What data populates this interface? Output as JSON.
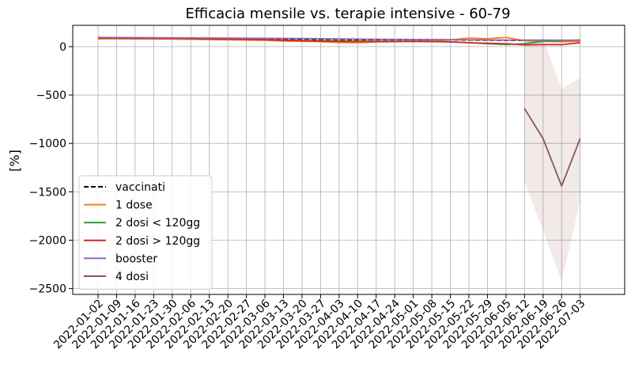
{
  "chart_data": {
    "type": "line",
    "title": "Efficacia mensile vs. terapie intensive - 60-79",
    "xlabel": "",
    "ylabel": "[%]",
    "x": [
      "2022-01-02",
      "2022-01-09",
      "2022-01-16",
      "2022-01-23",
      "2022-01-30",
      "2022-02-06",
      "2022-02-13",
      "2022-02-20",
      "2022-02-27",
      "2022-03-06",
      "2022-03-13",
      "2022-03-20",
      "2022-03-27",
      "2022-04-03",
      "2022-04-10",
      "2022-04-17",
      "2022-04-24",
      "2022-05-01",
      "2022-05-08",
      "2022-05-15",
      "2022-05-22",
      "2022-05-29",
      "2022-06-05",
      "2022-06-12",
      "2022-06-19",
      "2022-06-26",
      "2022-07-03"
    ],
    "ylim": [
      -2560,
      220
    ],
    "yticks": [
      0,
      -500,
      -1000,
      -1500,
      -2000,
      -2500
    ],
    "ytick_labels": [
      "0",
      "−500",
      "−1000",
      "−1500",
      "−2000",
      "−2500"
    ],
    "grid": true,
    "legend_position": "lower-left",
    "series": [
      {
        "name": "vaccinati",
        "color": "#000000",
        "dash": true,
        "values": [
          92,
          91,
          90,
          89,
          88,
          87,
          85,
          84,
          83,
          82,
          80,
          78,
          76,
          74,
          72,
          72,
          71,
          72,
          72,
          70,
          68,
          66,
          65,
          64,
          63,
          62,
          64
        ]
      },
      {
        "name": "1 dose",
        "color": "#ff7f0e",
        "dash": false,
        "values": [
          80,
          81,
          80,
          79,
          78,
          76,
          72,
          70,
          68,
          65,
          58,
          55,
          52,
          42,
          40,
          48,
          52,
          55,
          60,
          70,
          88,
          82,
          95,
          60,
          55,
          50,
          55
        ]
      },
      {
        "name": "2 dosi < 120gg",
        "color": "#2ca02c",
        "dash": false,
        "values": [
          88,
          87,
          86,
          85,
          84,
          83,
          80,
          78,
          75,
          72,
          68,
          64,
          60,
          58,
          56,
          55,
          55,
          56,
          55,
          50,
          40,
          30,
          22,
          30,
          55,
          60,
          70
        ]
      },
      {
        "name": "2 dosi > 120gg",
        "color": "#d62728",
        "dash": false,
        "values": [
          88,
          87,
          86,
          85,
          84,
          83,
          80,
          78,
          75,
          72,
          65,
          60,
          56,
          54,
          52,
          52,
          52,
          53,
          52,
          48,
          40,
          35,
          30,
          18,
          22,
          20,
          40
        ]
      },
      {
        "name": "booster",
        "color": "#9467bd",
        "dash": false,
        "values": [
          95,
          94,
          93,
          92,
          91,
          90,
          89,
          88,
          87,
          86,
          85,
          84,
          82,
          80,
          78,
          76,
          75,
          74,
          73,
          72,
          70,
          69,
          68,
          68,
          67,
          66,
          66
        ]
      },
      {
        "name": "4 dosi",
        "color": "#8c564b",
        "dash": false,
        "values": [
          null,
          null,
          null,
          null,
          null,
          null,
          null,
          null,
          null,
          null,
          null,
          null,
          null,
          null,
          null,
          null,
          null,
          null,
          null,
          null,
          null,
          null,
          null,
          -640,
          -950,
          -1440,
          -950
        ],
        "band_lower": [
          null,
          null,
          null,
          null,
          null,
          null,
          null,
          null,
          null,
          null,
          null,
          null,
          null,
          null,
          null,
          null,
          null,
          null,
          null,
          null,
          null,
          null,
          null,
          -1400,
          -1900,
          -2420,
          -1600
        ],
        "band_upper": [
          null,
          null,
          null,
          null,
          null,
          null,
          null,
          null,
          null,
          null,
          null,
          null,
          null,
          null,
          null,
          null,
          null,
          null,
          null,
          null,
          null,
          null,
          null,
          60,
          80,
          -440,
          -320
        ]
      }
    ]
  }
}
